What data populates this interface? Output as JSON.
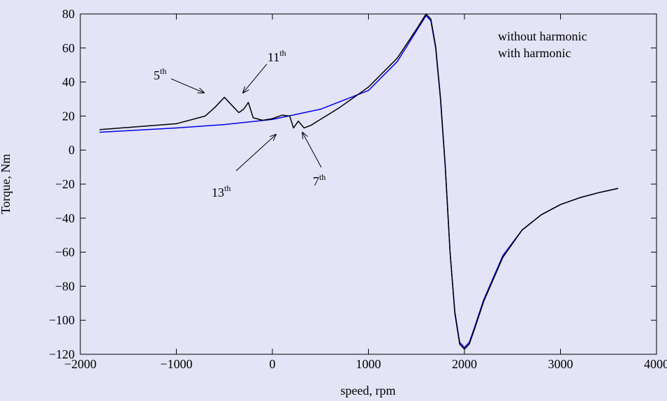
{
  "chart_data": {
    "type": "line",
    "xlabel": "speed, rpm",
    "ylabel": "Torque, Nm",
    "xlim": [
      -2000,
      4000
    ],
    "ylim": [
      -120,
      80
    ],
    "xticks": [
      {
        "value": -2000,
        "label": "−2000"
      },
      {
        "value": -1000,
        "label": "−1000"
      },
      0,
      1000,
      2000,
      3000,
      4000
    ],
    "yticks": [
      {
        "value": -120,
        "label": "−120"
      },
      {
        "value": -100,
        "label": "−100"
      },
      {
        "value": -80,
        "label": "−80"
      },
      {
        "value": -60,
        "label": "−60"
      },
      {
        "value": -40,
        "label": "−40"
      },
      {
        "value": -20,
        "label": "−20"
      },
      0,
      20,
      40,
      60,
      80
    ],
    "legend": "upper right",
    "series": [
      {
        "name": "without harmonic",
        "color": "#0000ee",
        "x": [
          -1800,
          -1000,
          -500,
          0,
          500,
          1000,
          1300,
          1500,
          1600,
          1650,
          1700,
          1750,
          1800,
          1850,
          1900,
          1950,
          2000,
          2050,
          2100,
          2200,
          2400,
          2600,
          2800,
          3000,
          3200,
          3400,
          3600
        ],
        "values": [
          10.5,
          13,
          15,
          18,
          24,
          35,
          52,
          70,
          79,
          76,
          60,
          30,
          -10,
          -60,
          -95,
          -113,
          -116,
          -113,
          -105,
          -88,
          -62,
          -47,
          -38,
          -32,
          -28,
          -25,
          -22.5
        ]
      },
      {
        "name": "with harmonic",
        "color": "#000000",
        "x": [
          -1800,
          -1000,
          -700,
          -600,
          -500,
          -400,
          -350,
          -300,
          -250,
          -200,
          -100,
          0,
          100,
          180,
          220,
          270,
          330,
          400,
          500,
          700,
          1000,
          1300,
          1500,
          1600,
          1650,
          1700,
          1750,
          1800,
          1850,
          1900,
          1950,
          2000,
          2050,
          2100,
          2200,
          2400,
          2600,
          2800,
          3000,
          3200,
          3400,
          3600
        ],
        "values": [
          12,
          15.5,
          20,
          25,
          31,
          25,
          22,
          24,
          28,
          19,
          17.5,
          18.5,
          20.5,
          20,
          13,
          17,
          13,
          14.5,
          18,
          25,
          37,
          54,
          71,
          80,
          77,
          61,
          31,
          -9,
          -60,
          -96,
          -114,
          -117,
          -114,
          -106,
          -89,
          -63,
          -47,
          -38,
          -32,
          -28,
          -25,
          -22.5
        ]
      }
    ],
    "annotations": [
      {
        "text": "5",
        "sup": "th"
      },
      {
        "text": "11",
        "sup": "th"
      },
      {
        "text": "13",
        "sup": "th"
      },
      {
        "text": "7",
        "sup": "th"
      }
    ]
  }
}
